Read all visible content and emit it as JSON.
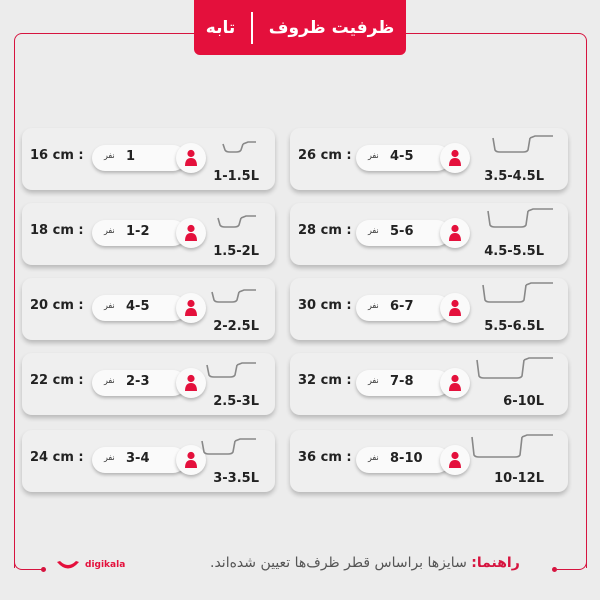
{
  "header": {
    "title": "ظرفیت ظروف",
    "subtitle": "تابه"
  },
  "person_label": "نفر",
  "accent": "#e4103c",
  "cards": [
    {
      "size": "16 cm :",
      "people": "1",
      "capacity": "1-1.5L"
    },
    {
      "size": "18 cm :",
      "people": "1-2",
      "capacity": "1.5-2L"
    },
    {
      "size": "20 cm :",
      "people": "4-5",
      "capacity": "2-2.5L"
    },
    {
      "size": "22 cm :",
      "people": "2-3",
      "capacity": "2.5-3L"
    },
    {
      "size": "24 cm :",
      "people": "3-4",
      "capacity": "3-3.5L"
    },
    {
      "size": "26 cm :",
      "people": "4-5",
      "capacity": "3.5-4.5L"
    },
    {
      "size": "28 cm :",
      "people": "5-6",
      "capacity": "4.5-5.5L"
    },
    {
      "size": "30 cm :",
      "people": "6-7",
      "capacity": "5.5-6.5L"
    },
    {
      "size": "32 cm :",
      "people": "7-8",
      "capacity": "6-10L"
    },
    {
      "size": "36 cm :",
      "people": "8-10",
      "capacity": "10-12L"
    }
  ],
  "footer": {
    "label": "راهنما:",
    "text": " سایزها براساس قطر ظرف‌ها تعیین شده‌اند."
  },
  "logo": {
    "text": "digikala"
  }
}
